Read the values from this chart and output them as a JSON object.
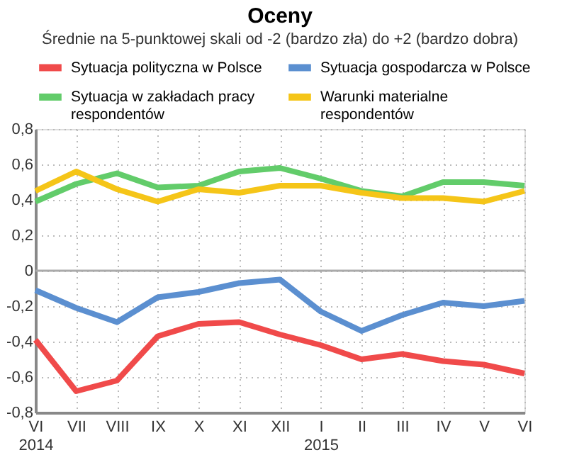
{
  "chart_data": {
    "type": "line",
    "title": "Oceny",
    "subtitle": "Średnie na 5-punktowej skali od -2 (bardzo zła) do +2 (bardzo dobra)",
    "categories": [
      "VI\n2014",
      "VII",
      "VIII",
      "IX",
      "X",
      "XI",
      "XII",
      "I\n2015",
      "II",
      "III",
      "IV",
      "V",
      "VI"
    ],
    "series": [
      {
        "name": "Sytuacja polityczna w Polsce",
        "color": "#f04a4a",
        "values": [
          -0.39,
          -0.68,
          -0.62,
          -0.37,
          -0.3,
          -0.29,
          -0.36,
          -0.42,
          -0.5,
          -0.47,
          -0.51,
          -0.53,
          -0.58
        ]
      },
      {
        "name": "Sytuacja gospodarcza w Polsce",
        "color": "#5b8fd0",
        "values": [
          -0.11,
          -0.21,
          -0.29,
          -0.15,
          -0.12,
          -0.07,
          -0.05,
          -0.23,
          -0.34,
          -0.25,
          -0.18,
          -0.2,
          -0.17
        ]
      },
      {
        "name": "Sytuacja w zakładach pracy respondentów",
        "color": "#62cc6a",
        "values": [
          0.39,
          0.49,
          0.55,
          0.47,
          0.48,
          0.56,
          0.58,
          0.52,
          0.45,
          0.42,
          0.5,
          0.5,
          0.48
        ]
      },
      {
        "name": "Warunki materialne respondentów",
        "color": "#f5c518",
        "values": [
          0.45,
          0.56,
          0.46,
          0.39,
          0.46,
          0.44,
          0.48,
          0.48,
          0.44,
          0.41,
          0.41,
          0.39,
          0.45
        ]
      }
    ],
    "ylim": [
      -0.8,
      0.8
    ],
    "yticks": [
      {
        "value": -0.8,
        "label": "-0,8"
      },
      {
        "value": -0.6,
        "label": "-0,6"
      },
      {
        "value": -0.4,
        "label": "-0,4"
      },
      {
        "value": -0.2,
        "label": "-0,2"
      },
      0,
      {
        "value": 0.2,
        "label": "0,2"
      },
      {
        "value": 0.4,
        "label": "0,4"
      },
      {
        "value": 0.6,
        "label": "0,6"
      },
      {
        "value": 0.8,
        "label": "0,8"
      }
    ],
    "ref_lines": [
      {
        "axis": "y",
        "value": 0,
        "color": "#aaaaaa"
      }
    ],
    "grid": true,
    "legend": "top",
    "marker": "none",
    "line_style": "solid"
  }
}
